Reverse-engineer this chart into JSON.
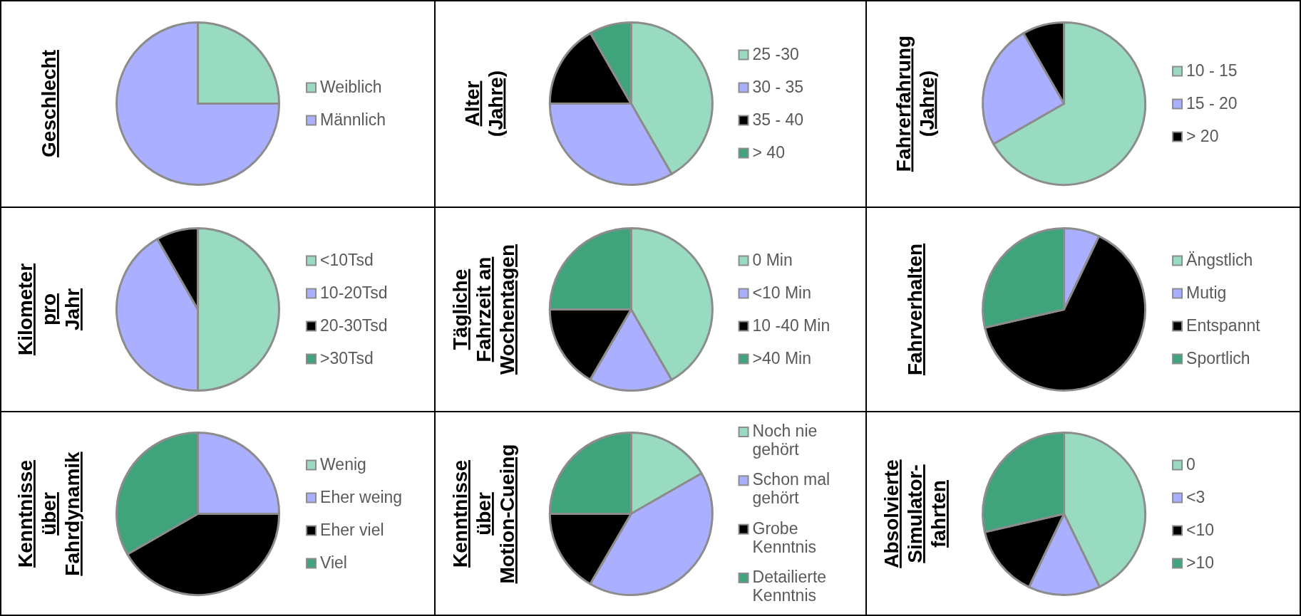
{
  "chart_data": [
    {
      "type": "pie",
      "title": "Geschlecht",
      "categories": [
        "Weiblich",
        "Männlich"
      ],
      "values": [
        25,
        75
      ],
      "colors": [
        "#99dbc0",
        "#aab0ff"
      ],
      "legend": "right"
    },
    {
      "type": "pie",
      "title": "Alter\n(Jahre)",
      "categories": [
        "25 -30",
        "30 - 35",
        "35 - 40",
        "> 40"
      ],
      "values": [
        41.7,
        33.3,
        16.7,
        8.3
      ],
      "colors": [
        "#99dbc0",
        "#aab0ff",
        "#000000",
        "#3fa37c"
      ],
      "legend": "right"
    },
    {
      "type": "pie",
      "title": "Fahrerfahrung\n(Jahre)",
      "categories": [
        "10 - 15",
        "15 - 20",
        "> 20"
      ],
      "values": [
        66.7,
        25,
        8.3
      ],
      "colors": [
        "#99dbc0",
        "#aab0ff",
        "#000000"
      ],
      "legend": "right"
    },
    {
      "type": "pie",
      "title": "Kilometer\npro\nJahr",
      "categories": [
        "<10Tsd",
        "10-20Tsd",
        "20-30Tsd",
        ">30Tsd"
      ],
      "values": [
        50,
        41.7,
        8.3,
        0
      ],
      "colors": [
        "#99dbc0",
        "#aab0ff",
        "#000000",
        "#3fa37c"
      ],
      "legend": "right"
    },
    {
      "type": "pie",
      "title": "Tägliche\nFahrzeit an\nWochentagen",
      "categories": [
        "0 Min",
        "<10 Min",
        "10 -40 Min",
        ">40 Min"
      ],
      "values": [
        41.7,
        16.7,
        16.6,
        25
      ],
      "colors": [
        "#99dbc0",
        "#aab0ff",
        "#000000",
        "#3fa37c"
      ],
      "legend": "right"
    },
    {
      "type": "pie",
      "title": "Fahrverhalten",
      "categories": [
        "Ängstlich",
        "Mutig",
        "Entspannt",
        "Sportlich"
      ],
      "values": [
        0,
        7.1,
        64.3,
        28.6
      ],
      "colors": [
        "#99dbc0",
        "#aab0ff",
        "#000000",
        "#3fa37c"
      ],
      "legend": "right"
    },
    {
      "type": "pie",
      "title": "Kenntnisse\nüber\nFahrdynamik",
      "categories": [
        "Wenig",
        "Eher weing",
        "Eher viel",
        "Viel"
      ],
      "values": [
        0,
        25,
        41.7,
        33.3
      ],
      "colors": [
        "#99dbc0",
        "#aab0ff",
        "#000000",
        "#3fa37c"
      ],
      "legend": "right"
    },
    {
      "type": "pie",
      "title": "Kenntnisse\nüber\nMotion-Cueing",
      "categories": [
        "Noch nie\ngehört",
        "Schon mal\ngehört",
        "Grobe\nKenntnis",
        "Detailierte\nKenntnis"
      ],
      "values": [
        16.7,
        41.7,
        16.6,
        25
      ],
      "colors": [
        "#99dbc0",
        "#aab0ff",
        "#000000",
        "#3fa37c"
      ],
      "legend": "right"
    },
    {
      "type": "pie",
      "title": "Absolvierte\nSimulator-\nfahrten",
      "categories": [
        "0",
        "<3",
        "<10",
        ">10"
      ],
      "values": [
        42.8,
        14.3,
        14.3,
        28.6
      ],
      "colors": [
        "#99dbc0",
        "#aab0ff",
        "#000000",
        "#3fa37c"
      ],
      "legend": "right"
    }
  ]
}
